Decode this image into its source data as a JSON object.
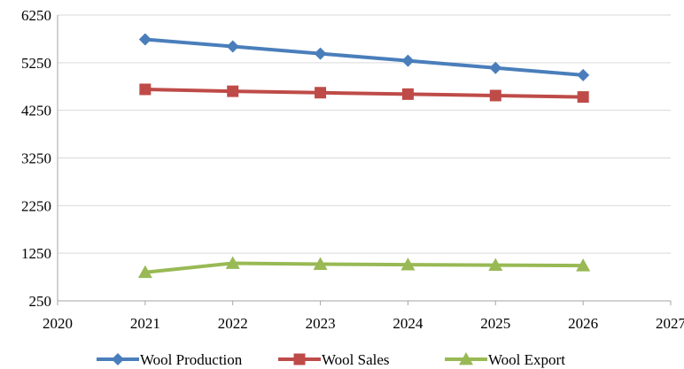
{
  "chart_data": {
    "type": "line",
    "title": "",
    "xlabel": "",
    "ylabel": "",
    "x": [
      2021,
      2022,
      2023,
      2024,
      2025,
      2026
    ],
    "xlim": [
      2020,
      2027
    ],
    "ylim": [
      250,
      6250
    ],
    "xticks": [
      "2020",
      "2021",
      "2022",
      "2023",
      "2024",
      "2025",
      "2026",
      "2027"
    ],
    "yticks": [
      "250",
      "1250",
      "2250",
      "3250",
      "4250",
      "5250",
      "6250"
    ],
    "grid": true,
    "legend_position": "bottom",
    "series": [
      {
        "name": "Wool Production",
        "color": "#4a7ebb",
        "marker": "diamond",
        "values": [
          5740,
          5590,
          5440,
          5290,
          5140,
          4990
        ]
      },
      {
        "name": "Wool Sales",
        "color": "#be4b48",
        "marker": "square",
        "values": [
          4690,
          4650,
          4620,
          4590,
          4560,
          4530
        ]
      },
      {
        "name": "Wool Export",
        "color": "#98b954",
        "marker": "triangle",
        "values": [
          850,
          1040,
          1020,
          1010,
          1000,
          990
        ]
      }
    ]
  }
}
